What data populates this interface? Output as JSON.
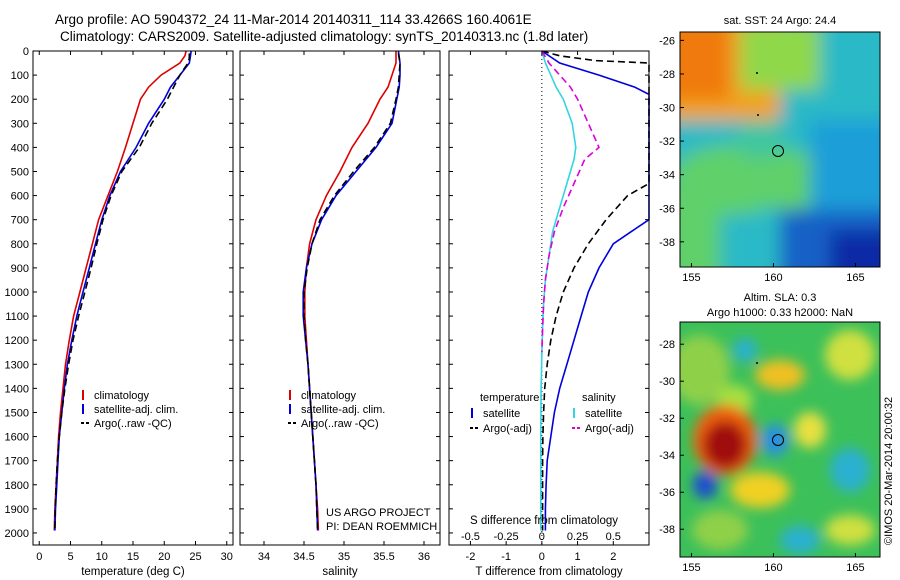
{
  "header": {
    "line1": "Argo profile: AO 5904372_24 11-Mar-2014 20140311_114 33.4266S 160.4061E",
    "line2": "Climatology: CARS2009. Satellite-adjusted climatology: synTS_20140313.nc (1.8d later)"
  },
  "colors": {
    "climatology": "#dd0000",
    "satellite": "#0000dd",
    "argo": "#000000",
    "salinity_sat": "#33d6e0",
    "salinity_argo": "#dd00dd"
  },
  "chart_data": [
    {
      "id": "temperature",
      "type": "line",
      "xlabel": "temperature (deg C)",
      "xlim": [
        -1,
        31
      ],
      "xticks": [
        0,
        5,
        10,
        15,
        20,
        25,
        30
      ],
      "ylim": [
        0,
        2050
      ],
      "yticks": [
        0,
        100,
        200,
        300,
        400,
        500,
        600,
        700,
        800,
        900,
        1000,
        1100,
        1200,
        1300,
        1400,
        1500,
        1600,
        1700,
        1800,
        1900,
        2000
      ],
      "legend": [
        "climatology",
        "satellite-adj. clim.",
        "Argo(..raw -QC)"
      ],
      "series": [
        {
          "name": "climatology",
          "color": "#dd0000",
          "dash": false,
          "points": [
            [
              23.5,
              0
            ],
            [
              23.3,
              20
            ],
            [
              22.5,
              50
            ],
            [
              19.5,
              100
            ],
            [
              17.5,
              150
            ],
            [
              16.2,
              200
            ],
            [
              15,
              300
            ],
            [
              13.8,
              400
            ],
            [
              12.5,
              500
            ],
            [
              11,
              600
            ],
            [
              9.5,
              700
            ],
            [
              8.5,
              800
            ],
            [
              7.5,
              900
            ],
            [
              6.5,
              1000
            ],
            [
              5.5,
              1100
            ],
            [
              4.8,
              1200
            ],
            [
              4.2,
              1300
            ],
            [
              3.8,
              1400
            ],
            [
              3.4,
              1500
            ],
            [
              3.1,
              1600
            ],
            [
              2.9,
              1700
            ],
            [
              2.7,
              1800
            ],
            [
              2.5,
              1900
            ],
            [
              2.4,
              1990
            ]
          ]
        },
        {
          "name": "satellite-adj. clim.",
          "color": "#0000dd",
          "dash": false,
          "points": [
            [
              24.3,
              0
            ],
            [
              24.2,
              20
            ],
            [
              24,
              50
            ],
            [
              22.5,
              100
            ],
            [
              21,
              150
            ],
            [
              20,
              200
            ],
            [
              17.5,
              300
            ],
            [
              15.5,
              400
            ],
            [
              13,
              500
            ],
            [
              11.3,
              600
            ],
            [
              10,
              700
            ],
            [
              9,
              800
            ],
            [
              8,
              900
            ],
            [
              7,
              1000
            ],
            [
              6,
              1100
            ],
            [
              5.2,
              1200
            ],
            [
              4.5,
              1300
            ],
            [
              4,
              1400
            ],
            [
              3.6,
              1500
            ],
            [
              3.2,
              1600
            ],
            [
              3,
              1700
            ],
            [
              2.8,
              1800
            ],
            [
              2.6,
              1900
            ],
            [
              2.5,
              1990
            ]
          ]
        },
        {
          "name": "Argo(..raw -QC)",
          "color": "#000000",
          "dash": true,
          "points": [
            [
              24,
              10
            ],
            [
              24,
              30
            ],
            [
              23.8,
              50
            ],
            [
              22.5,
              100
            ],
            [
              21.5,
              150
            ],
            [
              20.5,
              200
            ],
            [
              18,
              300
            ],
            [
              16,
              400
            ],
            [
              13.2,
              500
            ],
            [
              11.5,
              600
            ],
            [
              10.2,
              700
            ],
            [
              9.2,
              800
            ],
            [
              8.3,
              900
            ],
            [
              7.3,
              1000
            ],
            [
              6.3,
              1100
            ],
            [
              5.4,
              1200
            ],
            [
              4.7,
              1300
            ],
            [
              4.1,
              1400
            ],
            [
              3.6,
              1500
            ],
            [
              3.2,
              1600
            ],
            [
              2.9,
              1700
            ],
            [
              2.7,
              1800
            ],
            [
              2.55,
              1900
            ],
            [
              2.5,
              1990
            ]
          ]
        }
      ]
    },
    {
      "id": "salinity",
      "type": "line",
      "xlabel": "salinity",
      "xlim": [
        33.7,
        36.2
      ],
      "xticks": [
        34,
        34.5,
        35,
        35.5,
        36
      ],
      "ylim": [
        0,
        2050
      ],
      "legend": [
        "climatology",
        "satellite-adj. clim.",
        "Argo(..raw -QC)"
      ],
      "credit1": "US ARGO PROJECT",
      "credit2": "PI: DEAN ROEMMICH",
      "series": [
        {
          "name": "climatology",
          "color": "#dd0000",
          "dash": false,
          "points": [
            [
              35.65,
              0
            ],
            [
              35.65,
              50
            ],
            [
              35.6,
              100
            ],
            [
              35.55,
              150
            ],
            [
              35.45,
              200
            ],
            [
              35.3,
              300
            ],
            [
              35.1,
              400
            ],
            [
              34.95,
              500
            ],
            [
              34.78,
              600
            ],
            [
              34.65,
              700
            ],
            [
              34.57,
              800
            ],
            [
              34.53,
              900
            ],
            [
              34.51,
              1000
            ],
            [
              34.51,
              1100
            ],
            [
              34.53,
              1200
            ],
            [
              34.55,
              1300
            ],
            [
              34.57,
              1400
            ],
            [
              34.59,
              1500
            ],
            [
              34.61,
              1600
            ],
            [
              34.63,
              1700
            ],
            [
              34.65,
              1800
            ],
            [
              34.67,
              1900
            ],
            [
              34.68,
              1990
            ]
          ]
        },
        {
          "name": "satellite-adj. clim.",
          "color": "#0000dd",
          "dash": false,
          "points": [
            [
              35.68,
              0
            ],
            [
              35.7,
              50
            ],
            [
              35.7,
              100
            ],
            [
              35.69,
              150
            ],
            [
              35.66,
              200
            ],
            [
              35.6,
              300
            ],
            [
              35.4,
              400
            ],
            [
              35.15,
              500
            ],
            [
              34.9,
              600
            ],
            [
              34.72,
              700
            ],
            [
              34.6,
              800
            ],
            [
              34.53,
              900
            ],
            [
              34.49,
              1000
            ],
            [
              34.49,
              1100
            ],
            [
              34.52,
              1200
            ],
            [
              34.55,
              1300
            ],
            [
              34.57,
              1400
            ],
            [
              34.59,
              1500
            ],
            [
              34.61,
              1600
            ],
            [
              34.63,
              1700
            ],
            [
              34.65,
              1800
            ],
            [
              34.66,
              1900
            ],
            [
              34.67,
              1990
            ]
          ]
        },
        {
          "name": "Argo(..raw -QC)",
          "color": "#000000",
          "dash": true,
          "points": [
            [
              35.68,
              10
            ],
            [
              35.7,
              50
            ],
            [
              35.69,
              100
            ],
            [
              35.68,
              150
            ],
            [
              35.65,
              200
            ],
            [
              35.58,
              300
            ],
            [
              35.38,
              400
            ],
            [
              35.12,
              500
            ],
            [
              34.88,
              600
            ],
            [
              34.7,
              700
            ],
            [
              34.6,
              800
            ],
            [
              34.54,
              900
            ],
            [
              34.5,
              1000
            ],
            [
              34.5,
              1100
            ],
            [
              34.52,
              1200
            ],
            [
              34.55,
              1300
            ],
            [
              34.57,
              1400
            ],
            [
              34.59,
              1500
            ],
            [
              34.61,
              1600
            ],
            [
              34.63,
              1700
            ],
            [
              34.65,
              1800
            ],
            [
              34.66,
              1900
            ],
            [
              34.67,
              1990
            ]
          ]
        }
      ]
    },
    {
      "id": "difference",
      "type": "line",
      "xlabel": "T difference from climatology",
      "xlabel_top": "S difference from climatology",
      "xlim": [
        -2.6,
        3
      ],
      "xticks": [
        -2,
        -1,
        0,
        1,
        2
      ],
      "xticks_top_values": [
        -0.5,
        -0.25,
        0,
        0.25,
        0.5
      ],
      "ylim": [
        0,
        2050
      ],
      "legend_temperature_title": "temperature",
      "legend_salinity_title": "salinity",
      "legend_items": [
        "satellite",
        "Argo(-adj)",
        "satellite",
        "Argo(-adj)"
      ],
      "series": [
        {
          "name": "temperature satellite",
          "color": "#0000dd",
          "dash": false,
          "points": [
            [
              0,
              0
            ],
            [
              0.5,
              50
            ],
            [
              1.6,
              100
            ],
            [
              2.6,
              150
            ],
            [
              3,
              180
            ],
            [
              3,
              700
            ],
            [
              2.5,
              750
            ],
            [
              2,
              800
            ],
            [
              1.6,
              900
            ],
            [
              1.3,
              1000
            ],
            [
              1.1,
              1100
            ],
            [
              0.9,
              1200
            ],
            [
              0.7,
              1300
            ],
            [
              0.5,
              1400
            ],
            [
              0.35,
              1500
            ],
            [
              0.25,
              1600
            ],
            [
              0.15,
              1700
            ],
            [
              0.12,
              1800
            ],
            [
              0.1,
              1900
            ],
            [
              0.1,
              1990
            ]
          ]
        },
        {
          "name": "temperature Argo(-adj)",
          "color": "#000000",
          "dash": true,
          "points": [
            [
              0,
              0
            ],
            [
              0.5,
              20
            ],
            [
              1.5,
              40
            ],
            [
              3,
              50
            ],
            [
              3,
              550
            ],
            [
              2.4,
              600
            ],
            [
              1.8,
              700
            ],
            [
              1.3,
              800
            ],
            [
              0.9,
              900
            ],
            [
              0.6,
              1000
            ],
            [
              0.4,
              1100
            ],
            [
              0.25,
              1200
            ],
            [
              0.15,
              1300
            ],
            [
              0.08,
              1400
            ],
            [
              0.05,
              1500
            ],
            [
              0.03,
              1600
            ],
            [
              0.02,
              1700
            ],
            [
              0.02,
              1800
            ],
            [
              0.02,
              1900
            ],
            [
              0.02,
              1990
            ]
          ]
        },
        {
          "name": "salinity satellite",
          "color": "#33d6e0",
          "dash": false,
          "points": [
            [
              0,
              0
            ],
            [
              0.1,
              50
            ],
            [
              0.25,
              100
            ],
            [
              0.4,
              150
            ],
            [
              0.6,
              200
            ],
            [
              0.85,
              300
            ],
            [
              0.95,
              400
            ],
            [
              0.9,
              450
            ],
            [
              0.7,
              550
            ],
            [
              0.5,
              650
            ],
            [
              0.3,
              750
            ],
            [
              0.2,
              850
            ],
            [
              0.1,
              950
            ],
            [
              0.05,
              1050
            ],
            [
              0.02,
              1150
            ],
            [
              0,
              1250
            ],
            [
              -0.02,
              1400
            ],
            [
              -0.03,
              1600
            ],
            [
              -0.03,
              1800
            ],
            [
              -0.03,
              1990
            ]
          ]
        },
        {
          "name": "salinity Argo(-adj)",
          "color": "#dd00dd",
          "dash": true,
          "points": [
            [
              0,
              0
            ],
            [
              0.2,
              50
            ],
            [
              0.5,
              100
            ],
            [
              0.8,
              150
            ],
            [
              1,
              200
            ],
            [
              1.3,
              300
            ],
            [
              1.6,
              400
            ],
            [
              1.2,
              450
            ],
            [
              0.9,
              550
            ],
            [
              0.6,
              650
            ],
            [
              0.35,
              750
            ],
            [
              0.2,
              850
            ],
            [
              0.1,
              950
            ],
            [
              0.05,
              1050
            ],
            [
              0.02,
              1150
            ],
            [
              0,
              1250
            ]
          ]
        }
      ]
    },
    {
      "id": "sst_map",
      "type": "heatmap",
      "title": "sat. SST: 24 Argo: 24.4",
      "xticks": [
        155,
        160,
        165
      ],
      "yticks": [
        -26,
        -28,
        -30,
        -32,
        -34,
        -36,
        -38
      ],
      "xlim": [
        154.3,
        166.5
      ],
      "ylim": [
        -39.5,
        -25.5
      ],
      "argo_position": [
        160.4061,
        -33.4266
      ]
    },
    {
      "id": "sla_map",
      "type": "heatmap",
      "title1": "Altim. SLA: 0.3",
      "title2": "Argo h1000: 0.33 h2000: NaN",
      "xticks": [
        155,
        160,
        165
      ],
      "yticks": [
        -28,
        -30,
        -32,
        -34,
        -36,
        -38
      ],
      "xlim": [
        154.3,
        166.5
      ],
      "ylim": [
        -39.5,
        -26.8
      ],
      "argo_position": [
        160.4061,
        -33.4266
      ]
    }
  ],
  "footer": {
    "stamp": "©IMOS 20-Mar-2014 20:00:32"
  }
}
